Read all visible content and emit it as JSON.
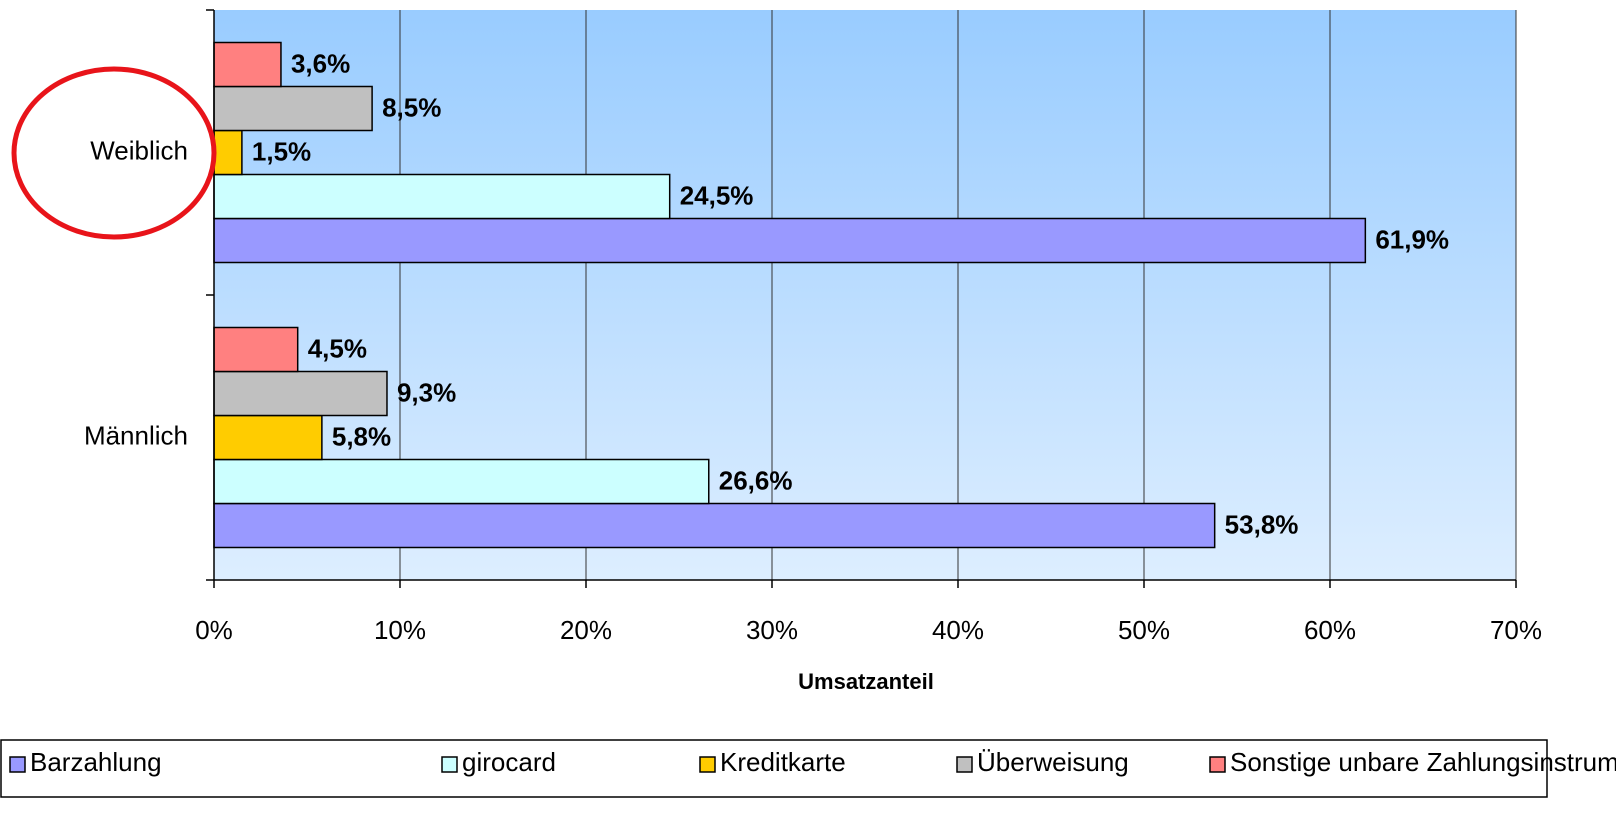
{
  "chart_data": {
    "type": "bar",
    "orientation": "horizontal",
    "x_label": "Umsatzanteil",
    "categories": [
      "Weiblich",
      "Männlich"
    ],
    "series": [
      {
        "name": "Barzahlung",
        "color": "#9999ff",
        "values": [
          61.9,
          53.8
        ],
        "value_labels": [
          "61,9%",
          "53,8%"
        ]
      },
      {
        "name": "girocard",
        "color": "#ccffff",
        "values": [
          24.5,
          26.6
        ],
        "value_labels": [
          "24,5%",
          "26,6%"
        ]
      },
      {
        "name": "Kreditkarte",
        "color": "#ffcc00",
        "values": [
          1.5,
          5.8
        ],
        "value_labels": [
          "1,5%",
          "5,8%"
        ]
      },
      {
        "name": "Überweisung",
        "color": "#c0c0c0",
        "values": [
          8.5,
          9.3
        ],
        "value_labels": [
          "8,5%",
          "9,3%"
        ]
      },
      {
        "name": "Sonstige unbare Zahlungsinstrumente",
        "color": "#ff8080",
        "values": [
          3.6,
          4.5
        ],
        "value_labels": [
          "3,6%",
          "4,5%"
        ]
      }
    ],
    "xlim": [
      0,
      70
    ],
    "xticks": [
      {
        "value": 0,
        "label": "0%"
      },
      {
        "value": 10,
        "label": "10%"
      },
      {
        "value": 20,
        "label": "20%"
      },
      {
        "value": 30,
        "label": "30%"
      },
      {
        "value": 40,
        "label": "40%"
      },
      {
        "value": 50,
        "label": "50%"
      },
      {
        "value": 60,
        "label": "60%"
      },
      {
        "value": 70,
        "label": "70%"
      }
    ],
    "grid": true,
    "legend": "bottom"
  }
}
